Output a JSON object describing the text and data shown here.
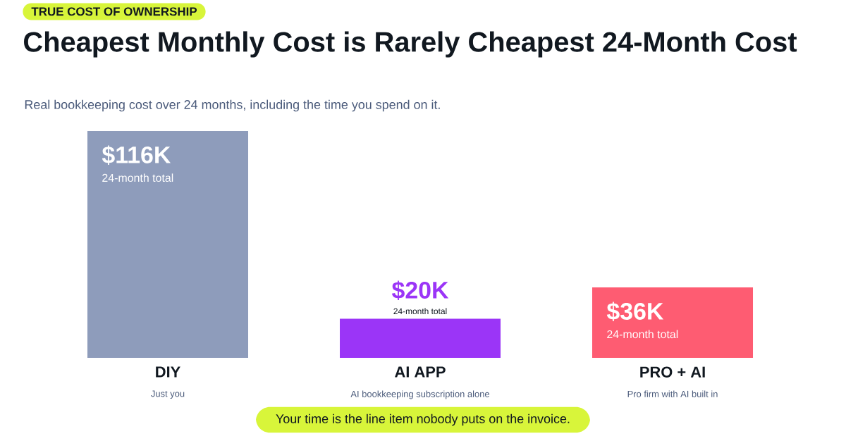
{
  "chart_data": {
    "type": "bar",
    "title": "Cheapest Monthly Cost is Rarely Cheapest 24-Month Cost",
    "subtitle": "Real bookkeeping cost over 24 months, including the time you spend on it.",
    "categories": [
      "DIY",
      "AI APP",
      "PRO + AI"
    ],
    "values": [
      116,
      20,
      36
    ],
    "colors": [
      "#8e9cbb",
      "#9b35f7",
      "#fe5c72"
    ],
    "value_labels": [
      "$116K",
      "$20K",
      "$36K"
    ],
    "annotations": [
      "TRUE COST OF OWNERSHIP",
      "Your time is the line item nobody puts on the invoice.",
      "24-month total",
      "24-month total",
      "24-month total",
      "Just you",
      "AI bookkeeping subscription alone",
      "Pro firm with AI built in"
    ]
  }
}
